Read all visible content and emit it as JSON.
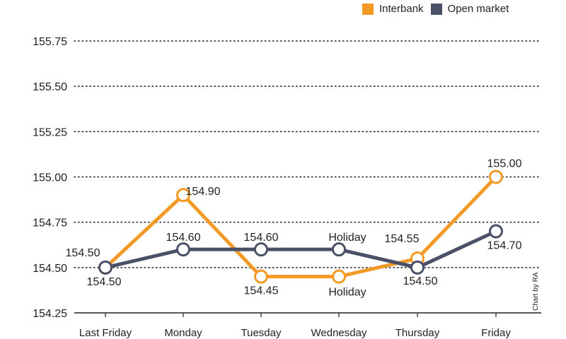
{
  "chart_data": {
    "type": "line",
    "title": "",
    "xlabel": "",
    "ylabel": "",
    "categories": [
      "Last Friday",
      "Monday",
      "Tuesday",
      "Wednesday",
      "Thursday",
      "Friday"
    ],
    "ylim": [
      154.25,
      155.75
    ],
    "yticks": [
      "154.25",
      "154.50",
      "154.75",
      "155.00",
      "155.25",
      "155.50",
      "155.75"
    ],
    "grid": "dotted-horizontal",
    "legend_position": "top-right",
    "series": [
      {
        "name": "Interbank",
        "color": "#f39a26",
        "values": [
          154.5,
          154.9,
          154.45,
          154.45,
          154.55,
          155.0
        ],
        "labels": [
          "154.50",
          "154.90",
          "154.45",
          "Holiday",
          "154.55",
          "155.00"
        ]
      },
      {
        "name": "Open market",
        "color": "#4a5068",
        "values": [
          154.5,
          154.6,
          154.6,
          154.6,
          154.5,
          154.7
        ],
        "labels": [
          "154.50",
          "154.60",
          "154.60",
          "Holiday",
          "154.50",
          "154.70"
        ]
      }
    ]
  },
  "credit": "Chart by RA"
}
